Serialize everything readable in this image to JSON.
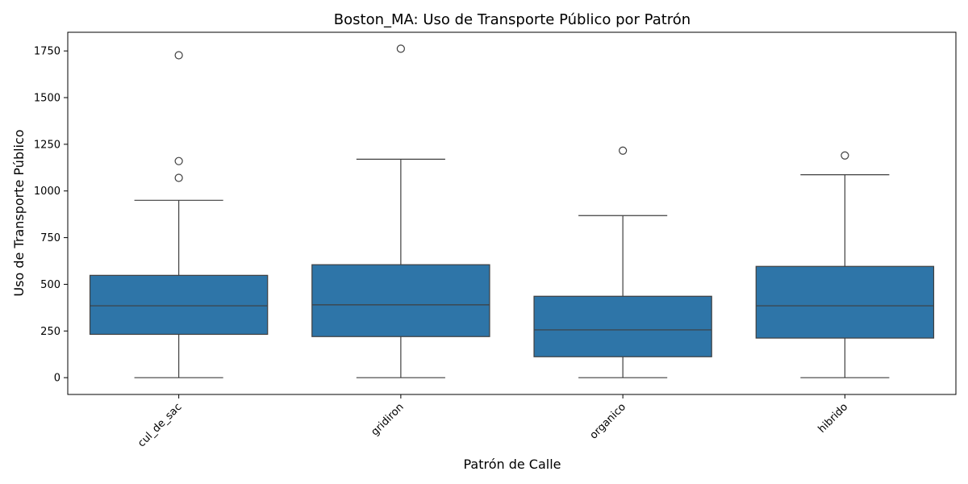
{
  "chart_data": {
    "type": "box",
    "title": "Boston_MA: Uso de Transporte Público por Patrón",
    "xlabel": "Patrón de Calle",
    "ylabel": "Uso de Transporte Público",
    "ylim": [
      -90,
      1850
    ],
    "yticks": [
      0,
      250,
      500,
      750,
      1000,
      1250,
      1500,
      1750
    ],
    "categories": [
      "cul_de_sac",
      "gridiron",
      "organico",
      "hibrido"
    ],
    "box_color": "#2e75a8",
    "grid": false,
    "boxes": [
      {
        "category": "cul_de_sac",
        "whisker_low": 0,
        "q1": 232,
        "median": 385,
        "q3": 548,
        "whisker_high": 950,
        "outliers": [
          1070,
          1160,
          1727
        ]
      },
      {
        "category": "gridiron",
        "whisker_low": 0,
        "q1": 220,
        "median": 390,
        "q3": 605,
        "whisker_high": 1170,
        "outliers": [
          1762
        ]
      },
      {
        "category": "organico",
        "whisker_low": 0,
        "q1": 112,
        "median": 256,
        "q3": 436,
        "whisker_high": 868,
        "outliers": [
          1216
        ]
      },
      {
        "category": "hibrido",
        "whisker_low": 0,
        "q1": 212,
        "median": 385,
        "q3": 596,
        "whisker_high": 1087,
        "outliers": [
          1190
        ]
      }
    ]
  }
}
